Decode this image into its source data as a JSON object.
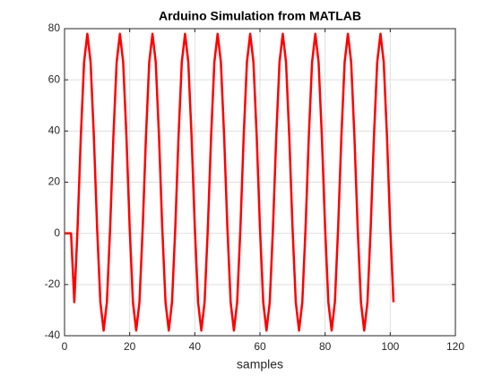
{
  "chart_data": {
    "type": "line",
    "title": "Arduino Simulation from MATLAB",
    "xlabel": "samples",
    "x": [
      0,
      1,
      2,
      3,
      4,
      5,
      6,
      7,
      8,
      9,
      10,
      11,
      12,
      13,
      14,
      15,
      16,
      17,
      18,
      19,
      20,
      21,
      22,
      23,
      24,
      25,
      26,
      27,
      28,
      29,
      30,
      31,
      32,
      33,
      34,
      35,
      36,
      37,
      38,
      39,
      40,
      41,
      42,
      43,
      44,
      45,
      46,
      47,
      48,
      49,
      50,
      51,
      52,
      53,
      54,
      55,
      56,
      57,
      58,
      59,
      60,
      61,
      62,
      63,
      64,
      65,
      66,
      67,
      68,
      69,
      70,
      71,
      72,
      73,
      74,
      75,
      76,
      77,
      78,
      79,
      80,
      81,
      82,
      83,
      84,
      85,
      86,
      87,
      88,
      89,
      90,
      91,
      92,
      93,
      94,
      95,
      96,
      97,
      98,
      99,
      100,
      101
    ],
    "series": [
      {
        "color": "#ff0000",
        "values": [
          0,
          0,
          0,
          -26.9,
          2.1,
          37.9,
          66.9,
          78,
          66.9,
          37.9,
          2.1,
          -26.9,
          -38,
          -26.9,
          2.1,
          37.9,
          66.9,
          78,
          66.9,
          37.9,
          2.1,
          -26.9,
          -38,
          -26.9,
          2.1,
          37.9,
          66.9,
          78,
          66.9,
          37.9,
          2.1,
          -26.9,
          -38,
          -26.9,
          2.1,
          37.9,
          66.9,
          78,
          66.9,
          37.9,
          2.1,
          -26.9,
          -38,
          -26.9,
          2.1,
          37.9,
          66.9,
          78,
          66.9,
          37.9,
          2.1,
          -26.9,
          -38,
          -26.9,
          2.1,
          37.9,
          66.9,
          78,
          66.9,
          37.9,
          2.1,
          -26.9,
          -38,
          -26.9,
          2.1,
          37.9,
          66.9,
          78,
          66.9,
          37.9,
          2.1,
          -26.9,
          -38,
          -26.9,
          2.1,
          37.9,
          66.9,
          78,
          66.9,
          37.9,
          2.1,
          -26.9,
          -38,
          -26.9,
          2.1,
          37.9,
          66.9,
          78,
          66.9,
          37.9,
          2.1,
          -26.9,
          -38,
          -26.9,
          2.1,
          37.9,
          66.9,
          78,
          66.9,
          37.9,
          2.1,
          -26.9
        ]
      }
    ],
    "xlim": [
      0,
      120
    ],
    "xticks": [
      0,
      20,
      40,
      60,
      80,
      100,
      120
    ],
    "ylim": [
      -40,
      80
    ],
    "yticks": [
      -40,
      -20,
      0,
      20,
      40,
      60,
      80
    ],
    "grid": true
  }
}
